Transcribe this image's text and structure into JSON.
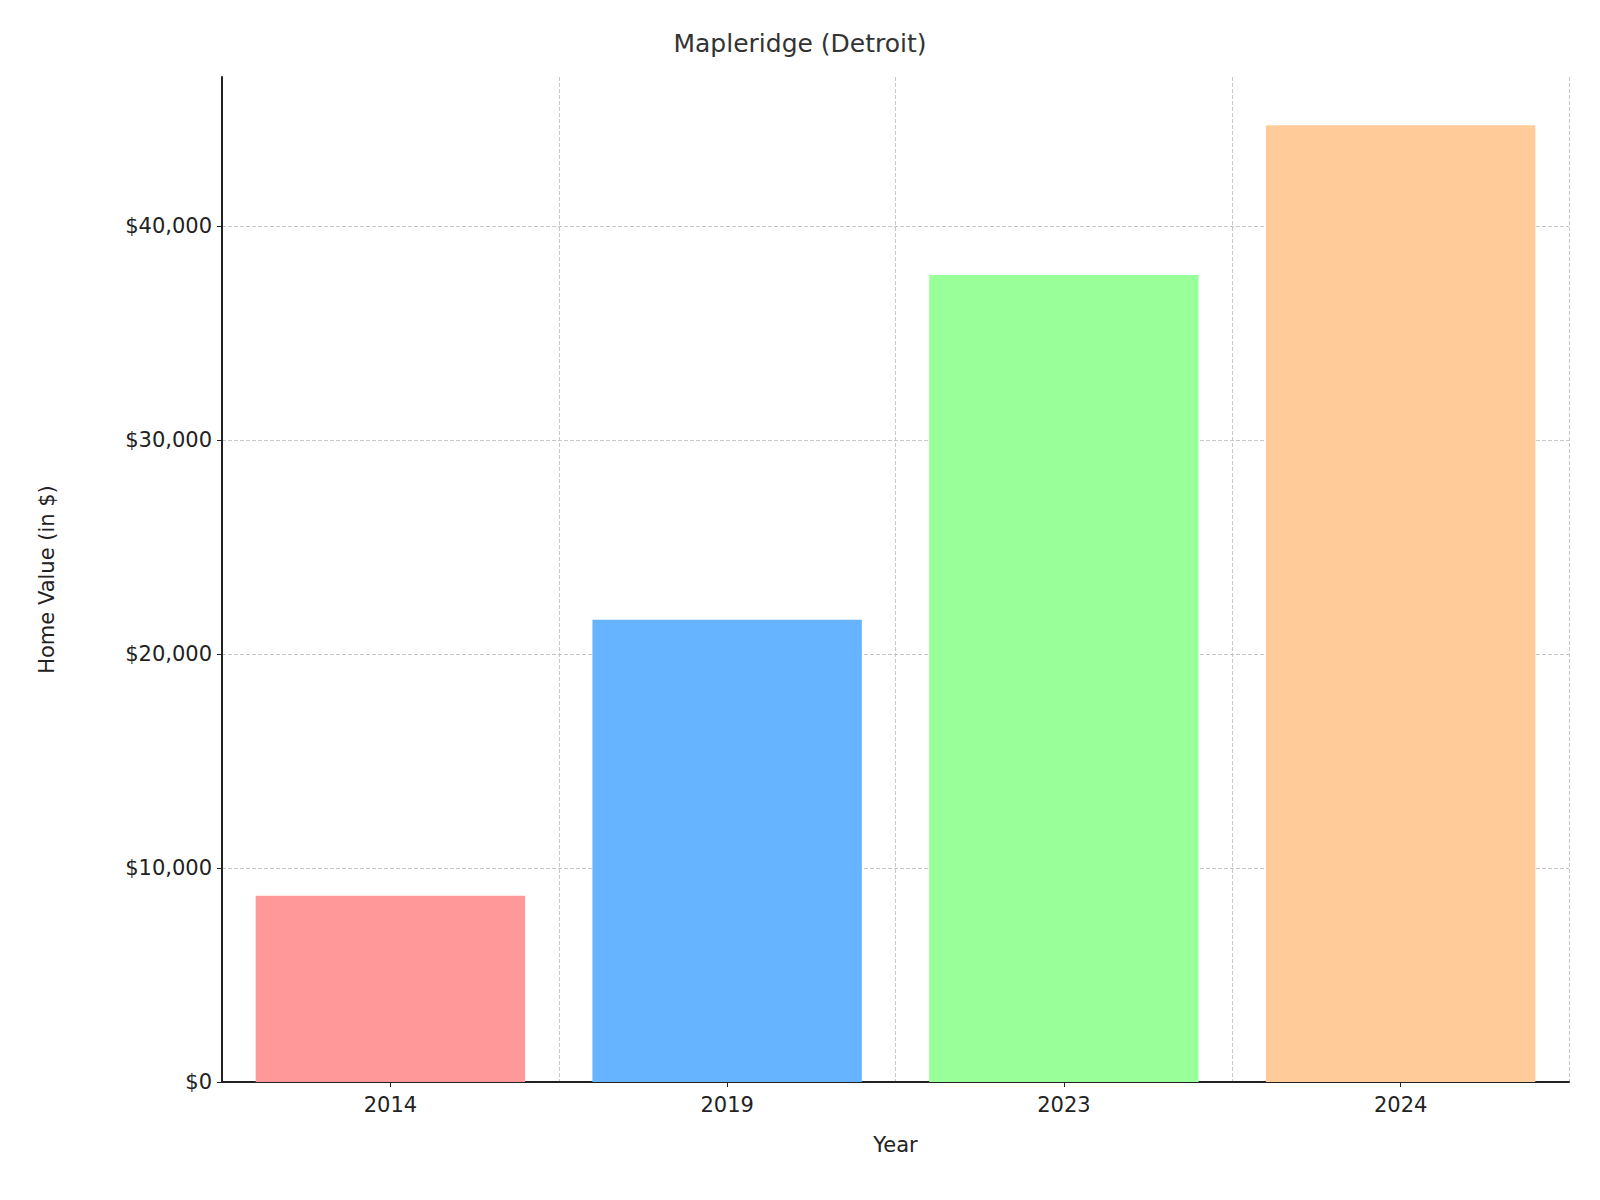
{
  "chart_data": {
    "type": "bar",
    "title": "Mapleridge (Detroit)",
    "xlabel": "Year",
    "ylabel": "Home Value (in $)",
    "categories": [
      "2014",
      "2019",
      "2023",
      "2024"
    ],
    "values": [
      8700,
      21600,
      37700,
      44700
    ],
    "colors": [
      "#ff9999",
      "#66b3ff",
      "#99ff99",
      "#ffcc99"
    ],
    "ylim": [
      0,
      46950
    ],
    "yticks": [
      {
        "value": 0,
        "label": "$0"
      },
      {
        "value": 10000,
        "label": "$10,000"
      },
      {
        "value": 20000,
        "label": "$20,000"
      },
      {
        "value": 30000,
        "label": "$30,000"
      },
      {
        "value": 40000,
        "label": "$40,000"
      }
    ],
    "grid": true
  }
}
